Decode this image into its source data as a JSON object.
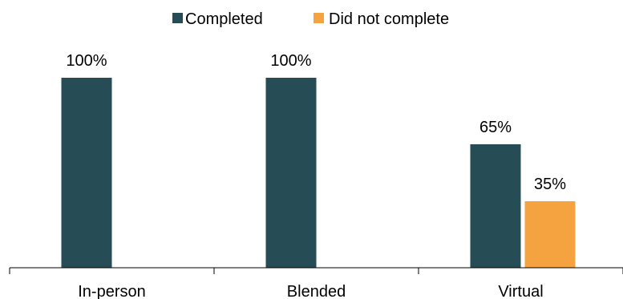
{
  "chart_data": {
    "type": "bar",
    "title": "",
    "xlabel": "",
    "ylabel": "",
    "categories": [
      "In-person",
      "Blended",
      "Virtual"
    ],
    "series": [
      {
        "name": "Completed",
        "color": "#264c56",
        "values": [
          100,
          100,
          65
        ],
        "labels": [
          "100%",
          "100%",
          "65%"
        ]
      },
      {
        "name": "Did not complete",
        "color": "#f4a340",
        "values": [
          null,
          null,
          35
        ],
        "labels": [
          "",
          "",
          "35%"
        ]
      }
    ],
    "ylim": [
      0,
      100
    ],
    "grid": false,
    "y_axis_visible": false,
    "legend_position": "top-center"
  }
}
